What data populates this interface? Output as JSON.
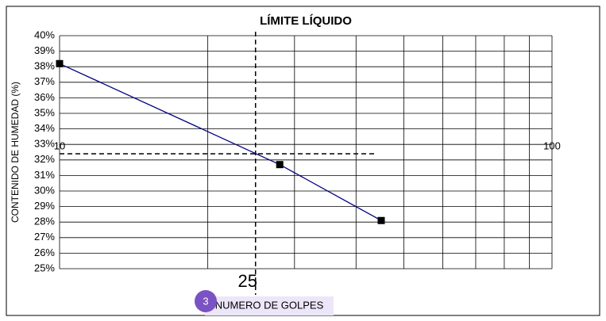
{
  "chart_data": {
    "type": "line",
    "title": "LÍMITE LÍQUIDO",
    "xlabel": "NUMERO DE GOLPES",
    "ylabel": "CONTENIDO DE HUMEDAD (%)",
    "badge": "3",
    "x": [
      10,
      28,
      45
    ],
    "series": [
      {
        "color": "#000080",
        "marker_color": "#000000",
        "values": [
          38.2,
          31.7,
          28.1
        ]
      }
    ],
    "xscale": "log",
    "xlim": [
      10,
      100
    ],
    "xticks": [
      10,
      100
    ],
    "xgrid": [
      20,
      30,
      40,
      50,
      60,
      70,
      80,
      90
    ],
    "ylim": [
      25,
      40
    ],
    "yticks": [
      {
        "value": 25,
        "label": "25%"
      },
      {
        "value": 26,
        "label": "26%"
      },
      {
        "value": 27,
        "label": "27%"
      },
      {
        "value": 28,
        "label": "28%"
      },
      {
        "value": 29,
        "label": "29%"
      },
      {
        "value": 30,
        "label": "30%"
      },
      {
        "value": 31,
        "label": "31%"
      },
      {
        "value": 32,
        "label": "32%"
      },
      {
        "value": 33,
        "label": "33%"
      },
      {
        "value": 34,
        "label": "34%"
      },
      {
        "value": 35,
        "label": "35%"
      },
      {
        "value": 36,
        "label": "36%"
      },
      {
        "value": 37,
        "label": "37%"
      },
      {
        "value": 38,
        "label": "38%"
      },
      {
        "value": 39,
        "label": "39%"
      },
      {
        "value": 40,
        "label": "40%"
      }
    ],
    "grid": true,
    "liquid_limit": {
      "x": 25,
      "y": 32.4
    }
  }
}
